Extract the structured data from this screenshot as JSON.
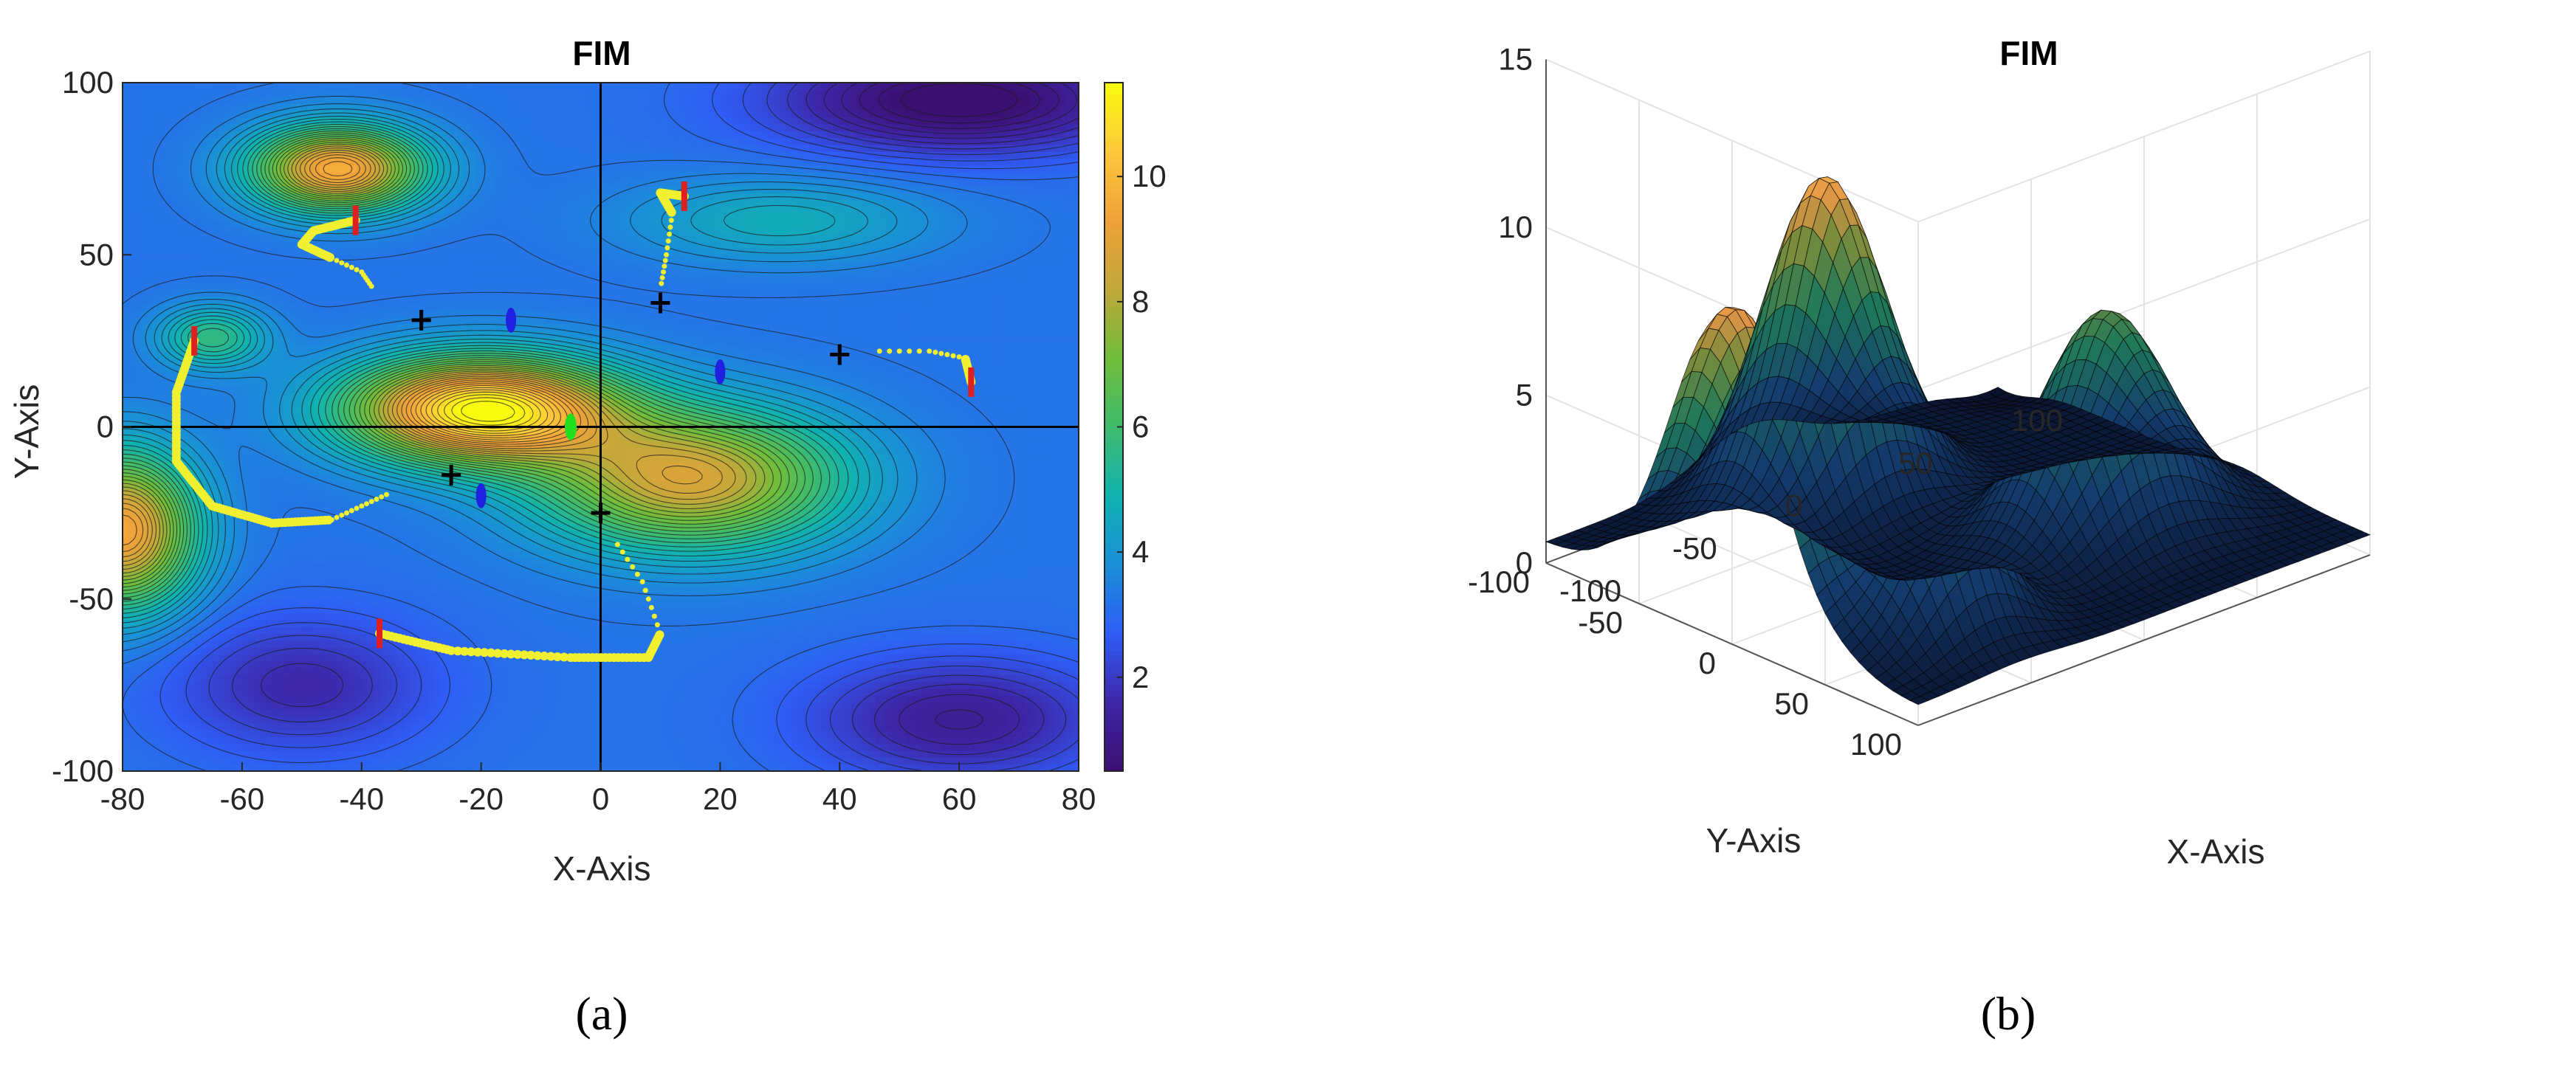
{
  "panels": {
    "a_label": "(a)",
    "b_label": "(b)"
  },
  "colors": {
    "colormap": [
      "#3b0f70",
      "#3e26a8",
      "#2f5cf5",
      "#1a8fd8",
      "#10b2b0",
      "#3fbb6c",
      "#6fbd3b",
      "#c0a83a",
      "#f0a13a",
      "#fcc83c",
      "#f9fb0e"
    ],
    "trajectory": "#f0f030",
    "start_marker": "#e02020",
    "sensor_black": "#000000",
    "sensor_blue": "#2020e0",
    "target_green": "#20e020"
  },
  "chart_data": [
    {
      "type": "heatmap",
      "title": "FIM",
      "xlabel": "X-Axis",
      "ylabel": "Y-Axis",
      "xlim": [
        -80,
        80
      ],
      "ylim": [
        -100,
        100
      ],
      "xticks": [
        "-80",
        "-60",
        "-40",
        "-20",
        "0",
        "20",
        "40",
        "60",
        "80"
      ],
      "yticks": [
        "100",
        "50",
        "0",
        "-50",
        "-100"
      ],
      "colorbar": {
        "range": [
          0.5,
          11.5
        ],
        "ticks": [
          "10",
          "8",
          "6",
          "4",
          "2"
        ]
      },
      "field_peaks": [
        {
          "x": -20,
          "y": 5,
          "value": 11.5
        },
        {
          "x": -44,
          "y": 75,
          "value": 10
        },
        {
          "x": 15,
          "y": -15,
          "value": 10.5
        },
        {
          "x": -80,
          "y": -30,
          "value": 9.5
        },
        {
          "x": -65,
          "y": 26,
          "value": 6.5
        },
        {
          "x": 30,
          "y": 60,
          "value": 5
        }
      ],
      "field_troughs": [
        {
          "x": 60,
          "y": 95,
          "value": 0.5
        },
        {
          "x": -50,
          "y": -75,
          "value": 2
        },
        {
          "x": 60,
          "y": -85,
          "value": 1.5
        }
      ],
      "black_crosses": [
        {
          "x": -30,
          "y": 31
        },
        {
          "x": 10,
          "y": 36
        },
        {
          "x": 40,
          "y": 21
        },
        {
          "x": -25,
          "y": -14
        },
        {
          "x": 0,
          "y": -25
        }
      ],
      "blue_markers": [
        {
          "x": -15,
          "y": 31
        },
        {
          "x": 20,
          "y": 16
        },
        {
          "x": -20,
          "y": -20
        }
      ],
      "green_marker": {
        "x": -5,
        "y": 0
      },
      "trajectories": [
        {
          "points": [
            [
              -68,
              25
            ],
            [
              -71,
              10
            ],
            [
              -71,
              -10
            ],
            [
              -65,
              -23
            ],
            [
              -55,
              -28
            ],
            [
              -45,
              -27
            ],
            [
              -40,
              -23
            ],
            [
              -35,
              -19
            ]
          ]
        },
        {
          "points": [
            [
              -41,
              60
            ],
            [
              -48,
              57
            ],
            [
              -50,
              53
            ],
            [
              -45,
              49
            ],
            [
              -40,
              45
            ],
            [
              -38,
              40
            ]
          ]
        },
        {
          "points": [
            [
              14,
              67
            ],
            [
              10,
              68
            ],
            [
              12,
              62
            ],
            [
              11,
              50
            ],
            [
              10,
              40
            ]
          ]
        },
        {
          "points": [
            [
              62,
              13
            ],
            [
              61,
              20
            ],
            [
              55,
              22
            ],
            [
              45,
              22
            ]
          ]
        },
        {
          "points": [
            [
              -37,
              -60
            ],
            [
              -25,
              -65
            ],
            [
              -5,
              -67
            ],
            [
              8,
              -67
            ],
            [
              10,
              -60
            ],
            [
              7,
              -45
            ],
            [
              2,
              -32
            ]
          ]
        }
      ],
      "start_markers": [
        {
          "x": -68,
          "y": 25
        },
        {
          "x": -41,
          "y": 60
        },
        {
          "x": 14,
          "y": 67
        },
        {
          "x": 62,
          "y": 13
        },
        {
          "x": -37,
          "y": -60
        }
      ]
    },
    {
      "type": "surface",
      "title": "FIM",
      "xlabel": "X-Axis",
      "ylabel": "Y-Axis",
      "zticks": [
        "0",
        "5",
        "10",
        "15"
      ],
      "xticks": [
        "-100",
        "-50",
        "0",
        "50",
        "100"
      ],
      "yticks": [
        "100",
        "50",
        "0",
        "-50",
        "-100"
      ],
      "zlim": [
        0,
        15
      ],
      "xlim": [
        -100,
        100
      ],
      "ylim": [
        -100,
        100
      ]
    }
  ]
}
